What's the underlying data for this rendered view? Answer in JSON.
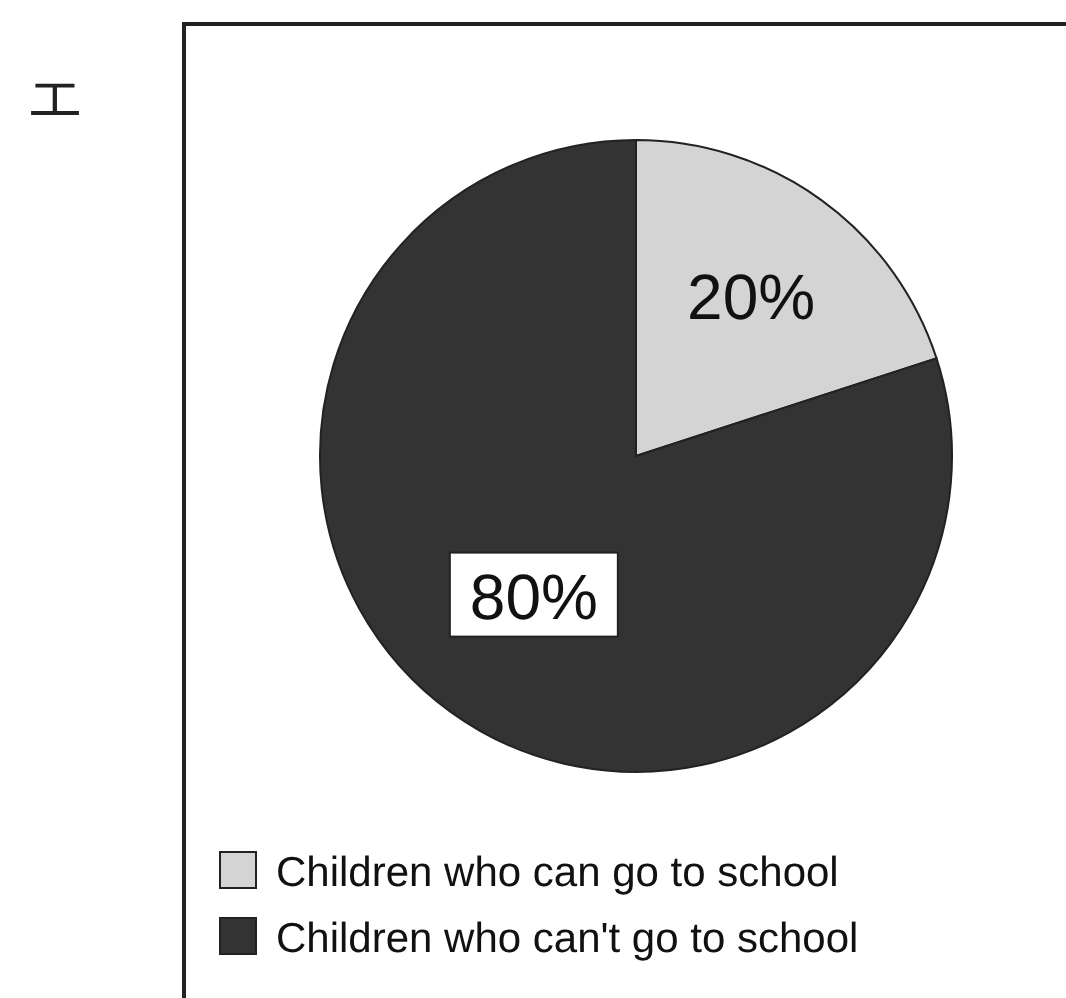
{
  "chart_data": {
    "type": "pie",
    "title": "エ",
    "categories": [
      "Children who can go to school",
      "Children who can't go to school"
    ],
    "values": [
      20,
      80
    ],
    "colors": [
      "#d4d4d4",
      "#333333"
    ],
    "value_labels": [
      "20%",
      "80%"
    ],
    "legend": "bottom"
  }
}
